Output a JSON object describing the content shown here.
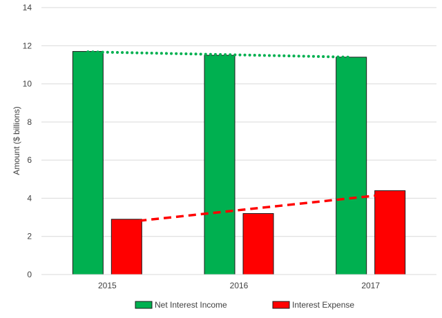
{
  "chart_data": {
    "type": "bar",
    "categories": [
      "2015",
      "2016",
      "2017"
    ],
    "series": [
      {
        "name": "Net Interest Income",
        "values": [
          11.7,
          11.5,
          11.4
        ],
        "color": "#00b050",
        "trend": "dotted"
      },
      {
        "name": "Interest Expense",
        "values": [
          2.9,
          3.2,
          4.4
        ],
        "color": "#ff0000",
        "trend": "dashed"
      }
    ],
    "trendlines": [
      {
        "series": "Net Interest Income",
        "start": 11.68,
        "end": 11.4
      },
      {
        "series": "Interest Expense",
        "start": 2.75,
        "end": 4.22
      }
    ],
    "ylabel": "Amount ($ billions)",
    "xlabel": "",
    "ylim": [
      0,
      14
    ],
    "yticks": [
      0,
      2,
      4,
      6,
      8,
      10,
      12,
      14
    ],
    "grid": true,
    "legend_position": "bottom"
  }
}
